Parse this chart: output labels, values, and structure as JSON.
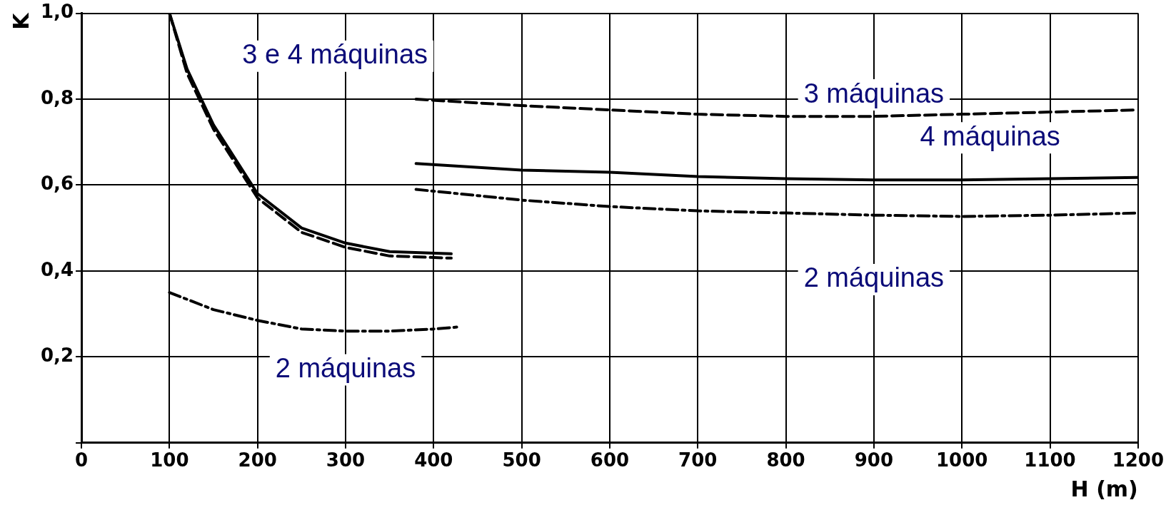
{
  "chart_data": {
    "type": "line",
    "xlabel": "H (m)",
    "ylabel": "K",
    "xlim": [
      0,
      1200
    ],
    "xticks": [
      0,
      100,
      200,
      300,
      400,
      500,
      600,
      700,
      800,
      900,
      1000,
      1100,
      1200
    ],
    "ylim": [
      0,
      1
    ],
    "yticks": [
      {
        "value": 0,
        "label": null
      },
      {
        "value": 0.2,
        "label": "0,2"
      },
      {
        "value": 0.4,
        "label": "0,4"
      },
      {
        "value": 0.6,
        "label": "0,6"
      },
      {
        "value": 0.8,
        "label": "0,8"
      },
      {
        "value": 1,
        "label": "1,0"
      }
    ],
    "grid": true,
    "series": [
      {
        "color": "#000000",
        "line_style": "solid",
        "x": [
          100,
          120,
          150,
          200,
          250,
          300,
          350,
          420
        ],
        "values": [
          1.0,
          0.87,
          0.74,
          0.58,
          0.5,
          0.465,
          0.445,
          0.44
        ]
      },
      {
        "color": "#000000",
        "line_style": "dashed",
        "x": [
          100,
          120,
          150,
          200,
          250,
          300,
          350,
          420
        ],
        "values": [
          1.0,
          0.86,
          0.73,
          0.57,
          0.49,
          0.455,
          0.435,
          0.43
        ]
      },
      {
        "color": "#000000",
        "line_style": "dashdot",
        "x": [
          100,
          150,
          200,
          250,
          300,
          350,
          400,
          430
        ],
        "values": [
          0.35,
          0.31,
          0.285,
          0.265,
          0.26,
          0.26,
          0.265,
          0.27
        ]
      },
      {
        "color": "#000000",
        "line_style": "dashed",
        "x": [
          380,
          500,
          600,
          700,
          800,
          900,
          1000,
          1100,
          1200
        ],
        "values": [
          0.8,
          0.785,
          0.775,
          0.765,
          0.76,
          0.76,
          0.765,
          0.77,
          0.775
        ]
      },
      {
        "color": "#000000",
        "line_style": "solid",
        "x": [
          380,
          500,
          600,
          700,
          800,
          900,
          1000,
          1100,
          1200
        ],
        "values": [
          0.65,
          0.635,
          0.63,
          0.62,
          0.615,
          0.612,
          0.612,
          0.615,
          0.618
        ]
      },
      {
        "color": "#000000",
        "line_style": "dashdot",
        "x": [
          380,
          500,
          600,
          700,
          800,
          900,
          1000,
          1100,
          1200
        ],
        "values": [
          0.59,
          0.565,
          0.55,
          0.54,
          0.535,
          0.53,
          0.527,
          0.53,
          0.535
        ]
      }
    ],
    "annotations": [
      "3 e 4 máquinas",
      "3 máquinas",
      "4 máquinas",
      "2 máquinas",
      "2 máquinas"
    ]
  }
}
